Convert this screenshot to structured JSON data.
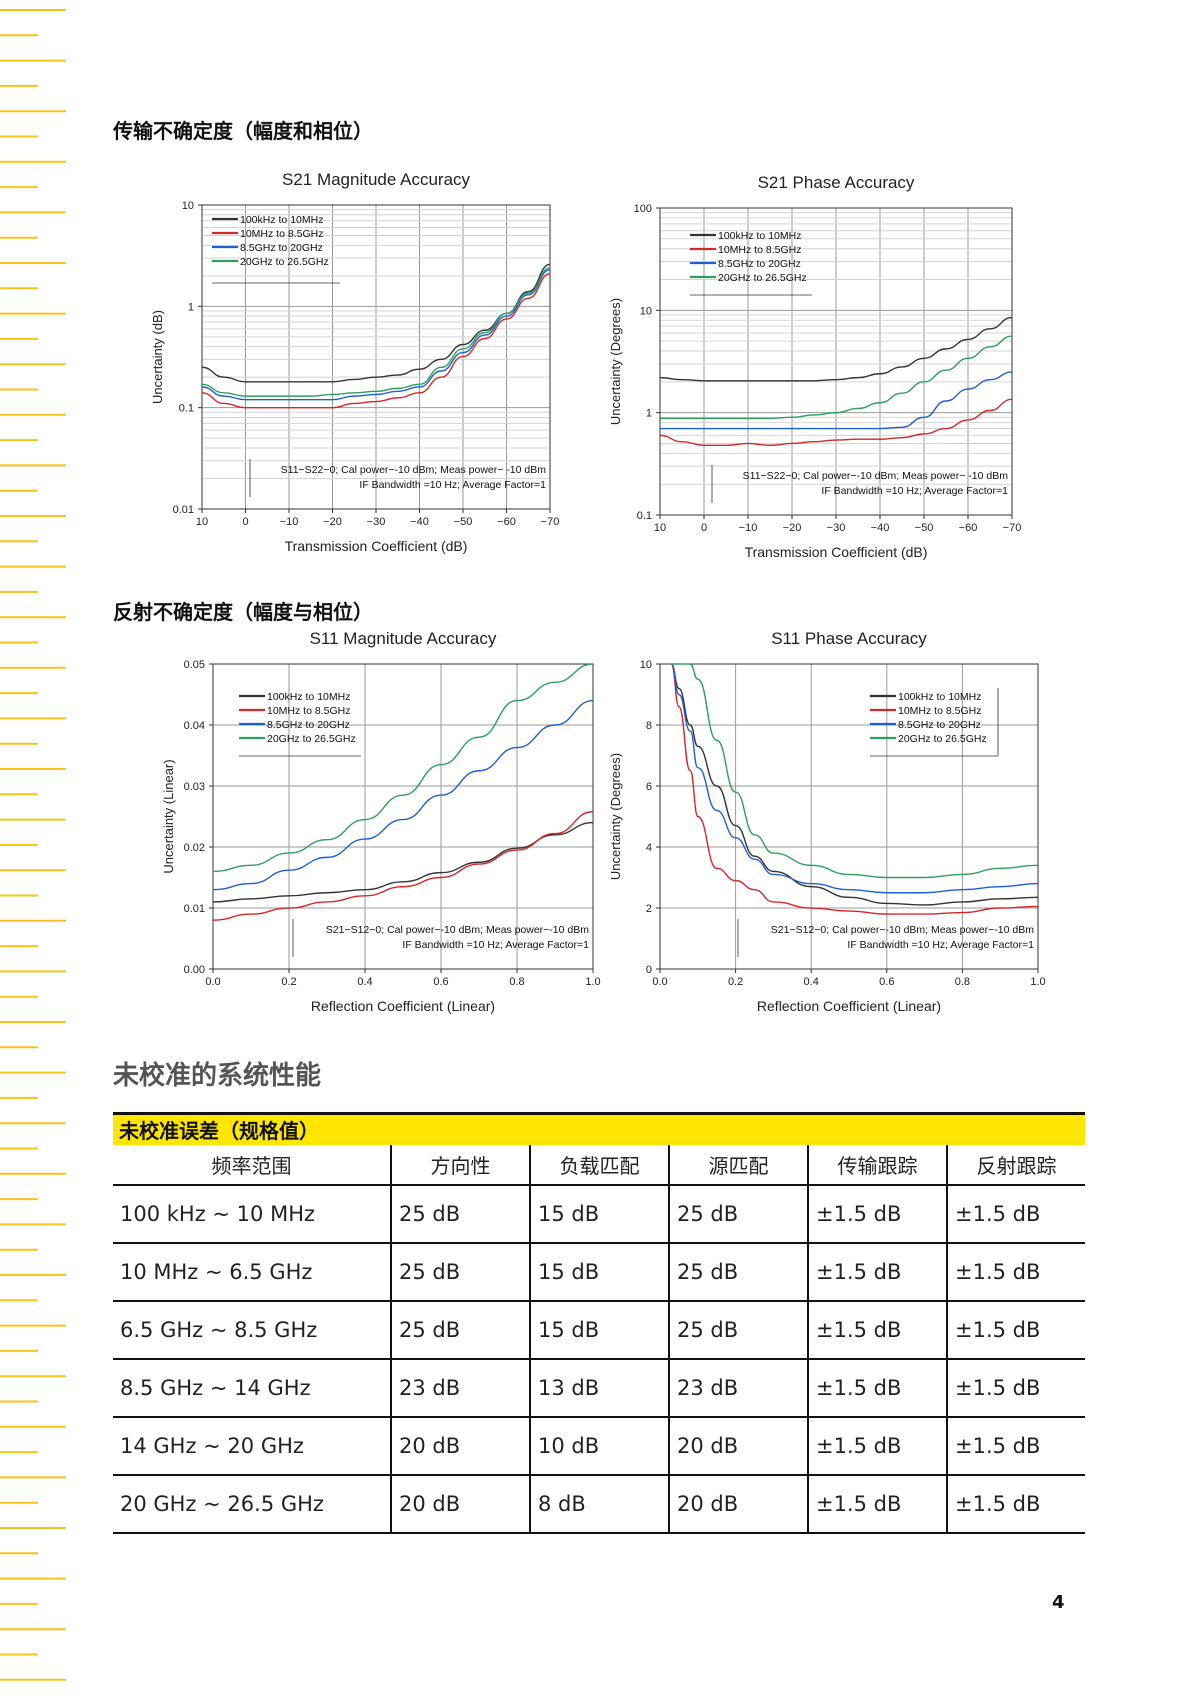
{
  "sections": {
    "transmission_title": "传输不确定度（幅度和相位）",
    "reflection_title": "反射不确定度（幅度与相位）",
    "uncalibrated_title": "未校准的系统性能"
  },
  "colors": {
    "stripe": "#f5c518",
    "series": [
      "#333333",
      "#d62728",
      "#1f5fd4",
      "#2ca05a"
    ],
    "table_header": "#ffe600"
  },
  "chart_data": [
    {
      "id": "s21-mag",
      "type": "line",
      "title": "S21 Magnitude Accuracy",
      "xlabel": "Transmission Coefficient (dB)",
      "ylabel": "Uncertainty (dB)",
      "xscale": "linear-reversed",
      "yscale": "log",
      "xlim": [
        10,
        -70
      ],
      "ylim": [
        0.01,
        10
      ],
      "xticks": [
        "10",
        "0",
        "−10",
        "−20",
        "−30",
        "−40",
        "−50",
        "−60",
        "−70"
      ],
      "yticks": [
        "0.01",
        "0.1",
        "1",
        "10"
      ],
      "legend": "top-left",
      "annotation": [
        "S11−S22−0; Cal power−-10 dBm; Meas power− -10 dBm",
        "IF Bandwidth =10 Hz; Average Factor=1"
      ],
      "x": [
        10,
        5,
        0,
        -5,
        -10,
        -15,
        -20,
        -25,
        -30,
        -35,
        -40,
        -45,
        -50,
        -55,
        -60,
        -65,
        -70
      ],
      "series": [
        {
          "name": "100kHz to 10MHz",
          "values": [
            0.25,
            0.2,
            0.18,
            0.18,
            0.18,
            0.18,
            0.18,
            0.19,
            0.2,
            0.21,
            0.24,
            0.3,
            0.42,
            0.58,
            0.85,
            1.4,
            2.6
          ]
        },
        {
          "name": "10MHz to 8.5GHz",
          "values": [
            0.14,
            0.11,
            0.1,
            0.1,
            0.1,
            0.1,
            0.1,
            0.11,
            0.115,
            0.125,
            0.14,
            0.2,
            0.32,
            0.48,
            0.75,
            1.2,
            2.1
          ]
        },
        {
          "name": "8.5GHz to 20GHz",
          "values": [
            0.16,
            0.13,
            0.12,
            0.12,
            0.12,
            0.12,
            0.12,
            0.13,
            0.135,
            0.145,
            0.16,
            0.23,
            0.35,
            0.52,
            0.8,
            1.3,
            2.3
          ]
        },
        {
          "name": "20GHz to 26.5GHz",
          "values": [
            0.17,
            0.14,
            0.13,
            0.13,
            0.13,
            0.13,
            0.135,
            0.14,
            0.145,
            0.155,
            0.17,
            0.25,
            0.38,
            0.55,
            0.85,
            1.35,
            2.4
          ]
        }
      ]
    },
    {
      "id": "s21-phase",
      "type": "line",
      "title": "S21 Phase Accuracy",
      "xlabel": "Transmission Coefficient (dB)",
      "ylabel": "Uncertainty (Degrees)",
      "xscale": "linear-reversed",
      "yscale": "log",
      "xlim": [
        10,
        -70
      ],
      "ylim": [
        0.1,
        100
      ],
      "xticks": [
        "10",
        "0",
        "−10",
        "−20",
        "−30",
        "−40",
        "−50",
        "−60",
        "−70"
      ],
      "yticks": [
        "0.1",
        "1",
        "10",
        "100"
      ],
      "legend": "top-left",
      "annotation": [
        "S11−S22−0; Cal power−-10 dBm; Meas power− -10 dBm",
        "IF Bandwidth =10 Hz; Average Factor=1"
      ],
      "x": [
        10,
        5,
        0,
        -5,
        -10,
        -15,
        -20,
        -25,
        -30,
        -35,
        -40,
        -45,
        -50,
        -55,
        -60,
        -65,
        -70
      ],
      "series": [
        {
          "name": "100kHz to 10MHz",
          "values": [
            2.2,
            2.1,
            2.05,
            2.05,
            2.05,
            2.05,
            2.05,
            2.05,
            2.1,
            2.2,
            2.4,
            2.8,
            3.4,
            4.2,
            5.2,
            6.6,
            8.5
          ]
        },
        {
          "name": "10MHz to 8.5GHz",
          "values": [
            0.6,
            0.52,
            0.48,
            0.48,
            0.5,
            0.48,
            0.5,
            0.52,
            0.54,
            0.55,
            0.55,
            0.57,
            0.62,
            0.7,
            0.85,
            1.05,
            1.35
          ]
        },
        {
          "name": "8.5GHz to 20GHz",
          "values": [
            0.7,
            0.7,
            0.7,
            0.7,
            0.7,
            0.7,
            0.7,
            0.7,
            0.7,
            0.7,
            0.7,
            0.72,
            0.9,
            1.3,
            1.7,
            2.1,
            2.5
          ]
        },
        {
          "name": "20GHz to 26.5GHz",
          "values": [
            0.88,
            0.88,
            0.88,
            0.88,
            0.88,
            0.88,
            0.9,
            0.95,
            1.0,
            1.1,
            1.25,
            1.55,
            2.0,
            2.6,
            3.4,
            4.4,
            5.6
          ]
        }
      ]
    },
    {
      "id": "s11-mag",
      "type": "line",
      "title": "S11 Magnitude Accuracy",
      "xlabel": "Reflection Coefficient (Linear)",
      "ylabel": "Uncertainty (Linear)",
      "xscale": "linear",
      "yscale": "linear",
      "xlim": [
        0,
        1
      ],
      "ylim": [
        0,
        0.05
      ],
      "xticks": [
        "0.0",
        "0.2",
        "0.4",
        "0.6",
        "0.8",
        "1.0"
      ],
      "yticks": [
        "0.00",
        "0.01",
        "0.02",
        "0.03",
        "0.04",
        "0.05"
      ],
      "legend": "top-left",
      "annotation": [
        "S21−S12−0; Cal power−-10 dBm; Meas power−-10 dBm",
        "IF Bandwidth =10 Hz; Average Factor=1"
      ],
      "x": [
        0,
        0.1,
        0.2,
        0.3,
        0.4,
        0.5,
        0.6,
        0.7,
        0.8,
        0.9,
        1.0
      ],
      "series": [
        {
          "name": "100kHz to 10MHz",
          "values": [
            0.011,
            0.0115,
            0.012,
            0.0125,
            0.013,
            0.0143,
            0.0158,
            0.0175,
            0.0198,
            0.022,
            0.024
          ]
        },
        {
          "name": "10MHz to 8.5GHz",
          "values": [
            0.008,
            0.009,
            0.01,
            0.011,
            0.012,
            0.0135,
            0.015,
            0.0172,
            0.0195,
            0.0222,
            0.0258
          ]
        },
        {
          "name": "8.5GHz to 20GHz",
          "values": [
            0.013,
            0.014,
            0.0162,
            0.0183,
            0.0213,
            0.0245,
            0.0285,
            0.0325,
            0.0363,
            0.04,
            0.044
          ]
        },
        {
          "name": "20GHz to 26.5GHz",
          "values": [
            0.016,
            0.017,
            0.019,
            0.0212,
            0.0245,
            0.0285,
            0.0335,
            0.038,
            0.044,
            0.047,
            0.05
          ]
        }
      ]
    },
    {
      "id": "s11-phase",
      "type": "line",
      "title": "S11 Phase Accuracy",
      "xlabel": "Reflection Coefficient (Linear)",
      "ylabel": "Uncertainty (Degrees)",
      "xscale": "linear",
      "yscale": "linear",
      "xlim": [
        0,
        1
      ],
      "ylim": [
        0,
        10
      ],
      "xticks": [
        "0.0",
        "0.2",
        "0.4",
        "0.6",
        "0.8",
        "1.0"
      ],
      "yticks": [
        "0",
        "2",
        "4",
        "6",
        "8",
        "10"
      ],
      "legend": "top-right",
      "annotation": [
        "S21−S12−0; Cal power−-10 dBm; Meas power−-10 dBm",
        "IF Bandwidth =10 Hz; Average Factor=1"
      ],
      "x": [
        0.03,
        0.05,
        0.08,
        0.1,
        0.15,
        0.2,
        0.25,
        0.3,
        0.4,
        0.5,
        0.6,
        0.7,
        0.8,
        0.9,
        1.0
      ],
      "series": [
        {
          "name": "100kHz to 10MHz",
          "values": [
            10,
            9.2,
            8.0,
            7.3,
            6.0,
            4.7,
            3.7,
            3.2,
            2.7,
            2.35,
            2.15,
            2.1,
            2.2,
            2.3,
            2.35
          ]
        },
        {
          "name": "10MHz to 8.5GHz",
          "values": [
            10,
            8.6,
            6.5,
            5.0,
            3.3,
            2.9,
            2.6,
            2.2,
            2.0,
            1.9,
            1.8,
            1.8,
            1.85,
            2.0,
            2.05
          ]
        },
        {
          "name": "8.5GHz to 20GHz",
          "values": [
            10,
            9.0,
            7.8,
            6.6,
            5.2,
            4.3,
            3.6,
            3.1,
            2.8,
            2.6,
            2.5,
            2.5,
            2.6,
            2.7,
            2.8
          ]
        },
        {
          "name": "20GHz to 26.5GHz",
          "values": [
            10,
            10,
            10,
            9.5,
            7.5,
            5.8,
            4.4,
            3.8,
            3.4,
            3.1,
            3.0,
            3.0,
            3.1,
            3.3,
            3.4
          ]
        }
      ]
    }
  ],
  "table": {
    "caption": "未校准误差（规格值）",
    "headers": [
      "频率范围",
      "方向性",
      "负载匹配",
      "源匹配",
      "传输跟踪",
      "反射跟踪"
    ],
    "rows": [
      [
        "100 kHz ~ 10 MHz",
        "25 dB",
        "15 dB",
        "25 dB",
        "±1.5 dB",
        "±1.5 dB"
      ],
      [
        "10 MHz ~ 6.5 GHz",
        "25 dB",
        "15 dB",
        "25 dB",
        "±1.5 dB",
        "±1.5 dB"
      ],
      [
        "6.5 GHz ~ 8.5 GHz",
        "25 dB",
        "15 dB",
        "25 dB",
        "±1.5 dB",
        "±1.5 dB"
      ],
      [
        "8.5 GHz ~ 14 GHz",
        "23 dB",
        "13 dB",
        "23 dB",
        "±1.5 dB",
        "±1.5 dB"
      ],
      [
        "14 GHz ~ 20 GHz",
        "20 dB",
        "10 dB",
        "20 dB",
        "±1.5 dB",
        "±1.5 dB"
      ],
      [
        "20 GHz ~ 26.5 GHz",
        "20 dB",
        "8 dB",
        "20 dB",
        "±1.5 dB",
        "±1.5 dB"
      ]
    ]
  },
  "page_number": "4"
}
